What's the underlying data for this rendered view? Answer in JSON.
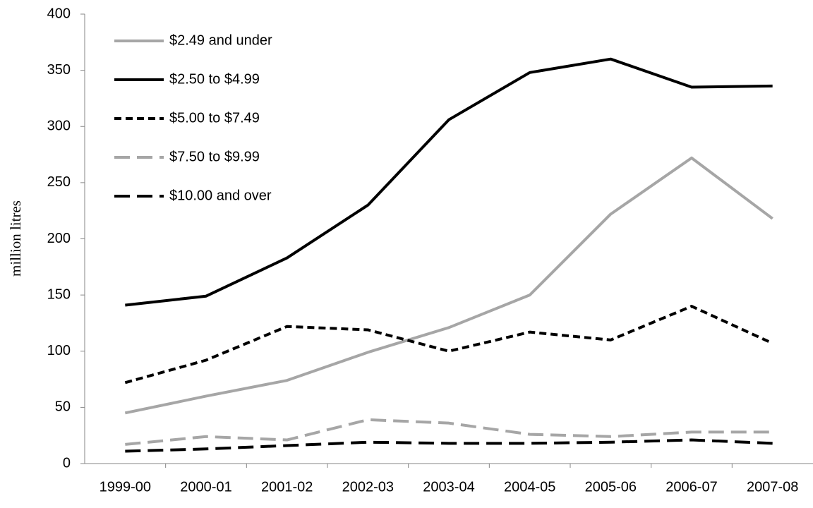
{
  "chart_data": {
    "type": "line",
    "y_label": "million litres",
    "categories": [
      "1999-00",
      "2000-01",
      "2001-02",
      "2002-03",
      "2003-04",
      "2004-05",
      "2005-06",
      "2006-07",
      "2007-08"
    ],
    "series": [
      {
        "name": "$2.49 and under",
        "color": "#a6a6a6",
        "dash": "solid",
        "values": [
          45,
          60,
          74,
          99,
          121,
          150,
          222,
          272,
          218
        ]
      },
      {
        "name": "$2.50 to $4.99",
        "color": "#000000",
        "dash": "solid",
        "values": [
          141,
          149,
          183,
          230,
          306,
          348,
          360,
          335,
          336
        ]
      },
      {
        "name": "$5.00 to $7.49",
        "color": "#000000",
        "dash": "short",
        "values": [
          72,
          92,
          122,
          119,
          100,
          117,
          110,
          140,
          107
        ]
      },
      {
        "name": "$7.50 to $9.99",
        "color": "#a6a6a6",
        "dash": "long",
        "values": [
          17,
          24,
          21,
          39,
          36,
          26,
          24,
          28,
          28
        ]
      },
      {
        "name": "$10.00 and over",
        "color": "#000000",
        "dash": "long",
        "values": [
          11,
          13,
          16,
          19,
          18,
          18,
          19,
          21,
          18
        ]
      }
    ],
    "ylim": [
      0,
      400
    ],
    "yticks": [
      0,
      50,
      100,
      150,
      200,
      250,
      300,
      350,
      400
    ],
    "legend": "upper left"
  }
}
